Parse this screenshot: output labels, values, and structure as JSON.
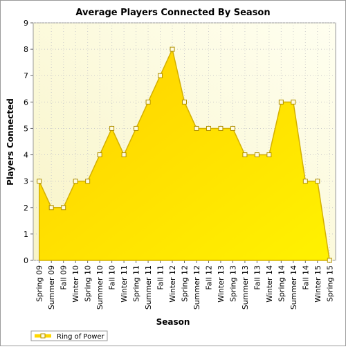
{
  "chart_data": {
    "type": "area",
    "title": "Average Players Connected By Season",
    "x_label": "Season",
    "y_label": "Players Connected",
    "categories": [
      "Spring 09",
      "Summer 09",
      "Fall 09",
      "Winter 10",
      "Spring 10",
      "Summer 10",
      "Fall 10",
      "Winter 11",
      "Spring 11",
      "Summer 11",
      "Fall 11",
      "Winter 12",
      "Spring 12",
      "Summer 12",
      "Fall 12",
      "Winter 13",
      "Spring 13",
      "Summer 13",
      "Fall 13",
      "Winter 14",
      "Spring 14",
      "Summer 14",
      "Fall 14",
      "Winter 15",
      "Spring 15"
    ],
    "series": [
      {
        "name": "Ring of Power",
        "color": "#ffd700",
        "values": [
          3,
          2,
          2,
          3,
          3,
          4,
          5,
          4,
          5,
          6,
          7,
          8,
          6,
          5,
          5,
          5,
          5,
          4,
          4,
          4,
          6,
          6,
          3,
          3,
          0
        ]
      }
    ],
    "ylim": [
      0,
      9
    ],
    "yticks": [
      0,
      1,
      2,
      3,
      4,
      5,
      6,
      7,
      8,
      9
    ],
    "grid": true,
    "legend": "bottom-left"
  }
}
